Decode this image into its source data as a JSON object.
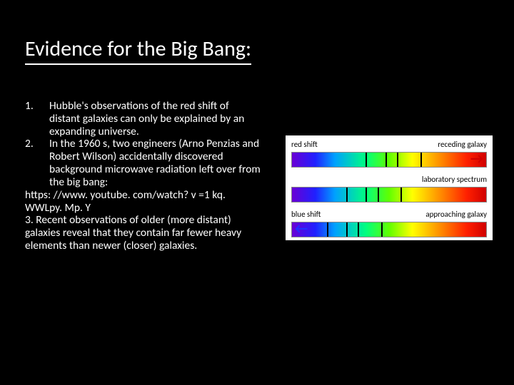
{
  "title": "Evidence for the Big Bang:",
  "list": {
    "item1_num": "1.",
    "item1_text": "Hubble's observations of the red shift of distant galaxies can only be explained by an expanding universe.",
    "item2_num": "2.",
    "item2_text": "In the 1960 s, two engineers (Arno Penzias and Robert Wilson) accidentally discovered background microwave radiation left over from the big bang:",
    "url": "https: //www. youtube. com/watch? v =1 kq. WWLpy. Mp. Y",
    "item3_text": "3. Recent observations of older (more distant) galaxies reveal that they contain far fewer heavy elements than newer (closer) galaxies."
  },
  "diagram": {
    "panels": [
      {
        "label_left": "red shift",
        "label_right": "receding galaxy",
        "type": "red",
        "arrow_right": true
      },
      {
        "label_left": "",
        "label_right": "laboratory spectrum",
        "type": "lab"
      },
      {
        "label_left": "blue shift",
        "label_right": "approaching galaxy",
        "type": "blue",
        "arrow_left": true
      }
    ],
    "spectrum_gradient": "linear-gradient(to right, #6a00d4 0%, #2020ff 12%, #00a0ff 22%, #00ff80 38%, #60ff00 50%, #ffff00 62%, #ff9000 76%, #ff2000 90%, #d00000 100%)",
    "line_positions": {
      "lab": [
        28,
        38,
        44,
        56
      ],
      "red": [
        38,
        48,
        54,
        66
      ],
      "blue": [
        18,
        28,
        34,
        46
      ]
    },
    "arrow_color_right": "#d00000",
    "arrow_color_left": "#2030ff",
    "label_color": "#000000",
    "label_fontsize": 11
  }
}
